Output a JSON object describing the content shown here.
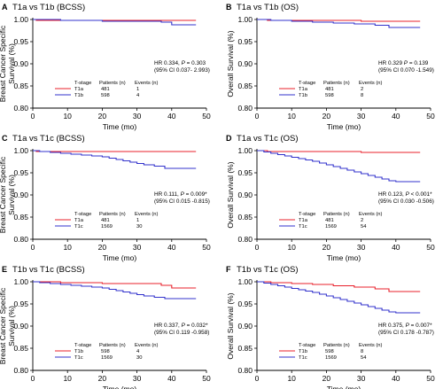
{
  "chart_data": [
    {
      "type": "line",
      "panel_letter": "A",
      "title": "T1a vs T1b (BCSS)",
      "xlabel": "Time (mo)",
      "ylabel": "Breast Cancer Specific Survival (%)",
      "ylabel_lines": [
        "Breast Cancer Specific",
        "Survival (%)"
      ],
      "xlim": [
        0,
        50
      ],
      "ylim": [
        0.8,
        1.0
      ],
      "xticks": [
        0,
        10,
        20,
        30,
        40,
        50
      ],
      "yticks": [
        "0.80",
        "0.85",
        "0.90",
        "0.95",
        "1.00"
      ],
      "hr_line1_prefix": "HR 0.334, ",
      "p_label": "P",
      "hr_line1_suffix": " = 0.303",
      "hr_line2": "(95% CI 0.037- 2.993)",
      "legend_headers": [
        "T-stage",
        "Patients (n)",
        "Events (n)"
      ],
      "series": [
        {
          "name": "T1a",
          "patients": "481",
          "events": "1",
          "color": "#e8212b",
          "x": [
            0,
            1,
            1,
            47
          ],
          "y": [
            1.0,
            1.0,
            0.998,
            0.998
          ]
        },
        {
          "name": "T1b",
          "patients": "598",
          "events": "4",
          "color": "#3333cc",
          "x": [
            0,
            8,
            8,
            20,
            20,
            37,
            37,
            40,
            40,
            47
          ],
          "y": [
            1.0,
            1.0,
            0.998,
            0.998,
            0.996,
            0.996,
            0.994,
            0.994,
            0.988,
            0.988
          ]
        }
      ]
    },
    {
      "type": "line",
      "panel_letter": "B",
      "title": "T1a vs T1b (OS)",
      "xlabel": "Time (mo)",
      "ylabel": "Overall Survival (%)",
      "ylabel_lines": [
        "Overall Survival (%)"
      ],
      "xlim": [
        0,
        50
      ],
      "ylim": [
        0.8,
        1.0
      ],
      "xticks": [
        0,
        10,
        20,
        30,
        40,
        50
      ],
      "yticks": [
        "0.80",
        "0.85",
        "0.90",
        "0.95",
        "1.00"
      ],
      "hr_line1_prefix": "HR 0.329 ",
      "p_label": "P",
      "hr_line1_suffix": " = 0.139",
      "hr_line2": "(95% CI 0.070 -1.549)",
      "legend_headers": [
        "T-stage",
        "Patients (n)",
        "Events (n)"
      ],
      "series": [
        {
          "name": "T1a",
          "patients": "481",
          "events": "2",
          "color": "#e8212b",
          "x": [
            0,
            3,
            3,
            30,
            30,
            47
          ],
          "y": [
            1.0,
            1.0,
            0.998,
            0.998,
            0.996,
            0.996
          ]
        },
        {
          "name": "T1b",
          "patients": "598",
          "events": "8",
          "color": "#3333cc",
          "x": [
            0,
            4,
            4,
            10,
            10,
            16,
            16,
            22,
            22,
            28,
            28,
            34,
            34,
            38,
            38,
            47
          ],
          "y": [
            1.0,
            1.0,
            0.998,
            0.998,
            0.996,
            0.996,
            0.994,
            0.994,
            0.992,
            0.992,
            0.99,
            0.99,
            0.987,
            0.987,
            0.982,
            0.982
          ]
        }
      ]
    },
    {
      "type": "line",
      "panel_letter": "C",
      "title": "T1a vs T1c (BCSS)",
      "xlabel": "Time (mo)",
      "ylabel": "Breast Cancer Specific Survival (%)",
      "ylabel_lines": [
        "Breast Cancer Specific",
        "Survival (%)"
      ],
      "xlim": [
        0,
        50
      ],
      "ylim": [
        0.8,
        1.0
      ],
      "xticks": [
        0,
        10,
        20,
        30,
        40,
        50
      ],
      "yticks": [
        "0.80",
        "0.85",
        "0.90",
        "0.95",
        "1.00"
      ],
      "hr_line1_prefix": "HR 0.111, ",
      "p_label": "P",
      "hr_line1_suffix": " = 0.009*",
      "hr_line2": "(95% CI 0.015 -0.815)",
      "legend_headers": [
        "T-stage",
        "Patients (n)",
        "Events (n)"
      ],
      "series": [
        {
          "name": "T1a",
          "patients": "481",
          "events": "1",
          "color": "#e8212b",
          "x": [
            0,
            1,
            1,
            47
          ],
          "y": [
            1.0,
            1.0,
            0.998,
            0.998
          ]
        },
        {
          "name": "T1c",
          "patients": "1569",
          "events": "30",
          "color": "#3333cc",
          "x": [
            0,
            2,
            2,
            5,
            5,
            8,
            8,
            11,
            11,
            14,
            14,
            17,
            17,
            20,
            20,
            22,
            22,
            24,
            24,
            26,
            26,
            28,
            28,
            30,
            30,
            32,
            32,
            35,
            35,
            38,
            38,
            47
          ],
          "y": [
            1.0,
            1.0,
            0.998,
            0.998,
            0.996,
            0.996,
            0.994,
            0.994,
            0.992,
            0.992,
            0.99,
            0.99,
            0.988,
            0.988,
            0.986,
            0.986,
            0.983,
            0.983,
            0.98,
            0.98,
            0.977,
            0.977,
            0.974,
            0.974,
            0.971,
            0.971,
            0.968,
            0.968,
            0.965,
            0.965,
            0.96,
            0.96
          ]
        }
      ]
    },
    {
      "type": "line",
      "panel_letter": "D",
      "title": "T1a vs T1c (OS)",
      "xlabel": "Time (mo)",
      "ylabel": "Overall Survival (%)",
      "ylabel_lines": [
        "Overall Survival (%)"
      ],
      "xlim": [
        0,
        50
      ],
      "ylim": [
        0.8,
        1.0
      ],
      "xticks": [
        0,
        10,
        20,
        30,
        40,
        50
      ],
      "yticks": [
        "0.80",
        "0.85",
        "0.90",
        "0.95",
        "1.00"
      ],
      "hr_line1_prefix": "HR 0.123, ",
      "p_label": "P",
      "hr_line1_suffix": " < 0.001*",
      "hr_line2": "(95% CI 0.030 -0.506)",
      "legend_headers": [
        "T-stage",
        "Patients (n)",
        "Events (n)"
      ],
      "series": [
        {
          "name": "T1a",
          "patients": "481",
          "events": "2",
          "color": "#e8212b",
          "x": [
            0,
            3,
            3,
            30,
            30,
            47
          ],
          "y": [
            1.0,
            1.0,
            0.998,
            0.998,
            0.996,
            0.996
          ]
        },
        {
          "name": "T1c",
          "patients": "1569",
          "events": "54",
          "color": "#3333cc",
          "x": [
            0,
            2,
            2,
            4,
            4,
            6,
            6,
            8,
            8,
            10,
            10,
            12,
            12,
            14,
            14,
            16,
            16,
            18,
            18,
            20,
            20,
            22,
            22,
            24,
            24,
            26,
            26,
            28,
            28,
            30,
            30,
            32,
            32,
            34,
            34,
            36,
            36,
            38,
            38,
            40,
            40,
            47
          ],
          "y": [
            1.0,
            1.0,
            0.997,
            0.997,
            0.994,
            0.994,
            0.991,
            0.991,
            0.988,
            0.988,
            0.985,
            0.985,
            0.982,
            0.982,
            0.979,
            0.979,
            0.976,
            0.976,
            0.972,
            0.972,
            0.968,
            0.968,
            0.964,
            0.964,
            0.96,
            0.96,
            0.956,
            0.956,
            0.952,
            0.952,
            0.948,
            0.948,
            0.944,
            0.944,
            0.94,
            0.94,
            0.936,
            0.936,
            0.932,
            0.932,
            0.93,
            0.93
          ]
        }
      ]
    },
    {
      "type": "line",
      "panel_letter": "E",
      "title": "T1b vs T1c (BCSS)",
      "xlabel": "Time (mo)",
      "ylabel": "Breast Cancer Specific Survival (%)",
      "ylabel_lines": [
        "Breast Cancer Specific",
        "Survival (%)"
      ],
      "xlim": [
        0,
        50
      ],
      "ylim": [
        0.8,
        1.0
      ],
      "xticks": [
        0,
        10,
        20,
        30,
        40,
        50
      ],
      "yticks": [
        "0.80",
        "0.85",
        "0.90",
        "0.95",
        "1.00"
      ],
      "hr_line1_prefix": "HR 0.337, ",
      "p_label": "P",
      "hr_line1_suffix": " = 0.032*",
      "hr_line2": "(95% CI 0.119 -0.958)",
      "legend_headers": [
        "T-stage",
        "Patients (n)",
        "Events (n)"
      ],
      "series": [
        {
          "name": "T1b",
          "patients": "598",
          "events": "4",
          "color": "#e8212b",
          "x": [
            0,
            8,
            8,
            20,
            20,
            37,
            37,
            40,
            40,
            47
          ],
          "y": [
            1.0,
            1.0,
            0.998,
            0.998,
            0.996,
            0.996,
            0.992,
            0.992,
            0.986,
            0.986
          ]
        },
        {
          "name": "T1c",
          "patients": "1569",
          "events": "30",
          "color": "#3333cc",
          "x": [
            0,
            2,
            2,
            5,
            5,
            8,
            8,
            11,
            11,
            14,
            14,
            17,
            17,
            20,
            20,
            22,
            22,
            24,
            24,
            26,
            26,
            28,
            28,
            30,
            30,
            32,
            32,
            35,
            35,
            38,
            38,
            47
          ],
          "y": [
            1.0,
            1.0,
            0.998,
            0.998,
            0.996,
            0.996,
            0.994,
            0.994,
            0.992,
            0.992,
            0.99,
            0.99,
            0.988,
            0.988,
            0.986,
            0.986,
            0.983,
            0.983,
            0.98,
            0.98,
            0.977,
            0.977,
            0.974,
            0.974,
            0.971,
            0.971,
            0.968,
            0.968,
            0.965,
            0.965,
            0.962,
            0.962
          ]
        }
      ]
    },
    {
      "type": "line",
      "panel_letter": "F",
      "title": "T1b vs T1c (OS)",
      "xlabel": "Time (mo)",
      "ylabel": "Overall Survival (%)",
      "ylabel_lines": [
        "Overall Survival (%)"
      ],
      "xlim": [
        0,
        50
      ],
      "ylim": [
        0.8,
        1.0
      ],
      "xticks": [
        0,
        10,
        20,
        30,
        40,
        50
      ],
      "yticks": [
        "0.80",
        "0.85",
        "0.90",
        "0.95",
        "1.00"
      ],
      "hr_line1_prefix": "HR 0.375, ",
      "p_label": "P",
      "hr_line1_suffix": " = 0.007*",
      "hr_line2": "(95% CI 0.178 -0.787)",
      "legend_headers": [
        "T-stage",
        "Patients (n)",
        "Events (n)"
      ],
      "series": [
        {
          "name": "T1b",
          "patients": "598",
          "events": "8",
          "color": "#e8212b",
          "x": [
            0,
            4,
            4,
            10,
            10,
            16,
            16,
            22,
            22,
            28,
            28,
            34,
            34,
            38,
            38,
            47
          ],
          "y": [
            1.0,
            1.0,
            0.998,
            0.998,
            0.996,
            0.996,
            0.994,
            0.994,
            0.991,
            0.991,
            0.988,
            0.988,
            0.984,
            0.984,
            0.978,
            0.978
          ]
        },
        {
          "name": "T1c",
          "patients": "1569",
          "events": "54",
          "color": "#3333cc",
          "x": [
            0,
            2,
            2,
            4,
            4,
            6,
            6,
            8,
            8,
            10,
            10,
            12,
            12,
            14,
            14,
            16,
            16,
            18,
            18,
            20,
            20,
            22,
            22,
            24,
            24,
            26,
            26,
            28,
            28,
            30,
            30,
            32,
            32,
            34,
            34,
            36,
            36,
            38,
            38,
            40,
            40,
            47
          ],
          "y": [
            1.0,
            1.0,
            0.997,
            0.997,
            0.994,
            0.994,
            0.991,
            0.991,
            0.988,
            0.988,
            0.985,
            0.985,
            0.982,
            0.982,
            0.979,
            0.979,
            0.976,
            0.976,
            0.972,
            0.972,
            0.968,
            0.968,
            0.964,
            0.964,
            0.96,
            0.96,
            0.956,
            0.956,
            0.952,
            0.952,
            0.948,
            0.948,
            0.944,
            0.944,
            0.94,
            0.94,
            0.936,
            0.936,
            0.932,
            0.932,
            0.93,
            0.93
          ]
        }
      ]
    }
  ]
}
